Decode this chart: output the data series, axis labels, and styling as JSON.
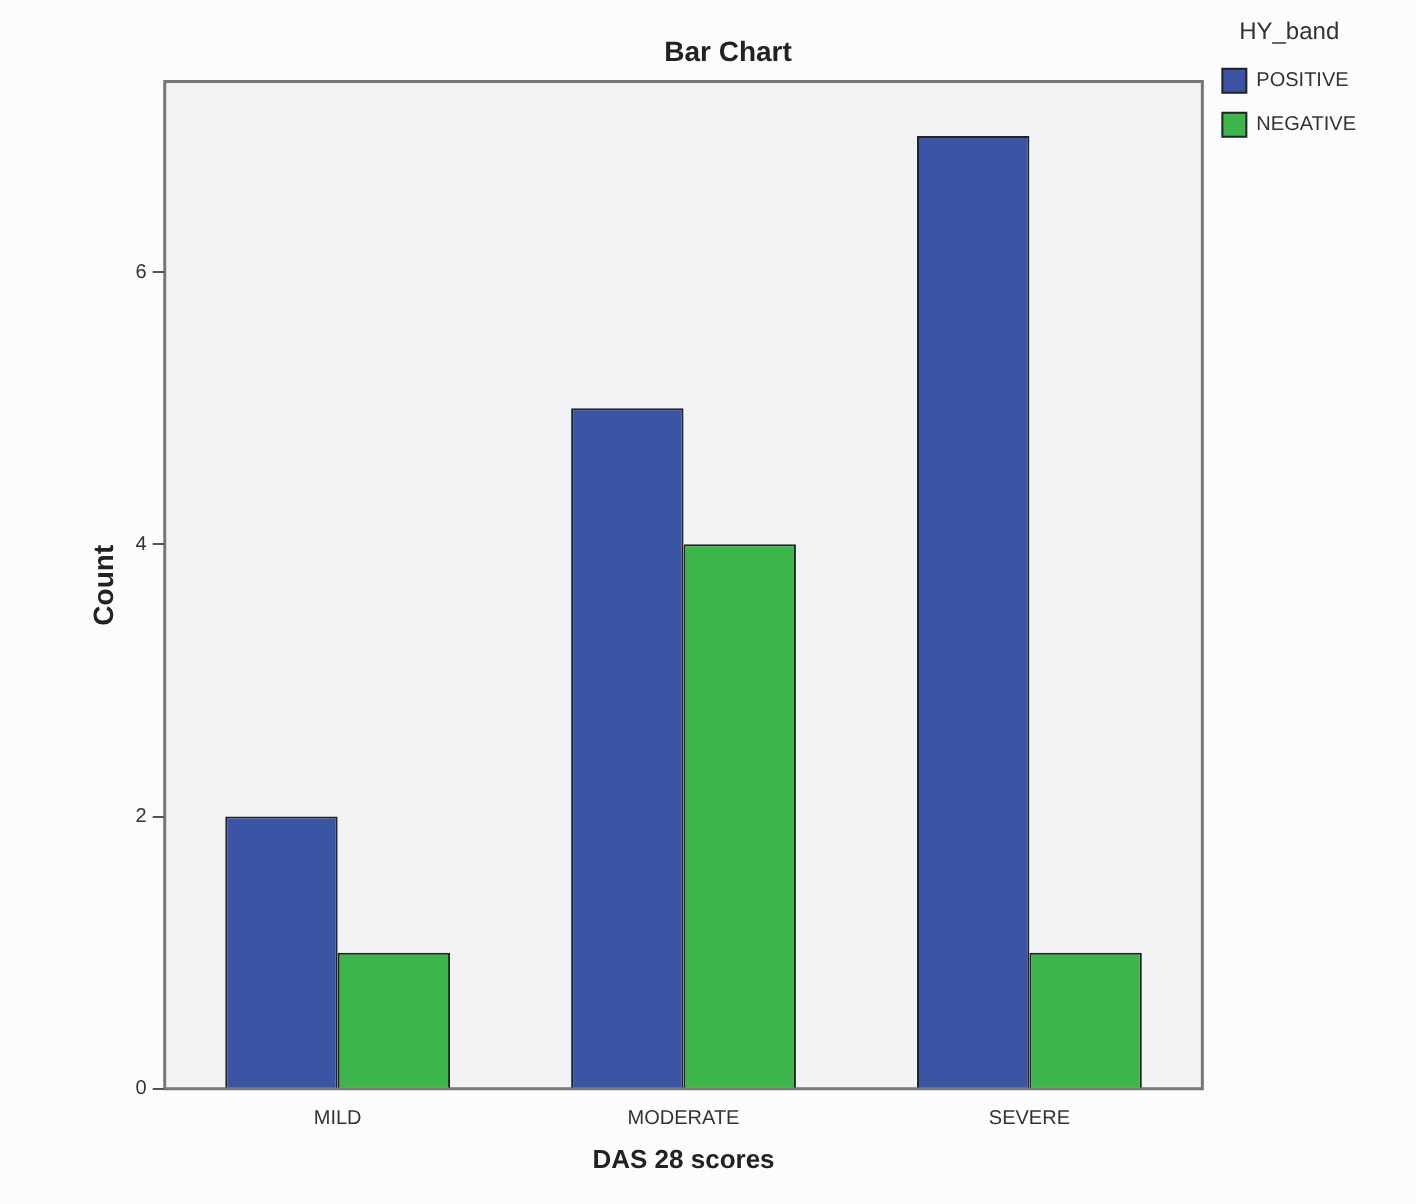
{
  "chart_data": {
    "type": "bar",
    "title": "Bar Chart",
    "xlabel": "DAS 28 scores",
    "ylabel": "Count",
    "legend_title": "HY_band",
    "categories": [
      "MILD",
      "MODERATE",
      "SEVERE"
    ],
    "series": [
      {
        "name": "POSITIVE",
        "color": "#3b54a4",
        "values": [
          2,
          5,
          7
        ]
      },
      {
        "name": "NEGATIVE",
        "color": "#3db54a",
        "values": [
          1,
          4,
          1
        ]
      }
    ],
    "ylim": [
      0,
      7.4
    ],
    "yticks": [
      0,
      2,
      4,
      6
    ],
    "grid": false,
    "legend": "top right"
  }
}
